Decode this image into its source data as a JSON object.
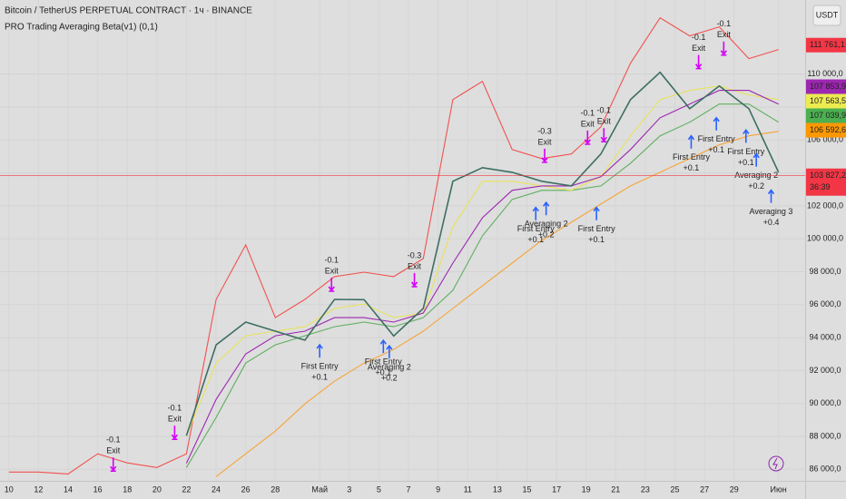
{
  "chart_data": {
    "type": "line",
    "title": "Bitcoin / TetherUS PERPETUAL CONTRACT · 1ч · BINANCE",
    "subtitle": "PRO Trading Averaging Beta(v1) (0,1)",
    "currency": "USDT",
    "countdown": "36:39",
    "x": [
      0,
      2,
      4,
      6,
      8,
      10,
      12,
      14,
      16,
      18,
      20,
      22,
      24,
      26,
      28,
      30,
      32,
      34,
      36,
      38,
      40,
      42,
      44,
      46,
      48,
      50,
      52
    ],
    "xlim": [
      -0.6,
      53.8
    ],
    "xticks": [
      {
        "value": 0,
        "label": "10"
      },
      {
        "value": 2,
        "label": "12"
      },
      {
        "value": 4,
        "label": "14"
      },
      {
        "value": 6,
        "label": "16"
      },
      {
        "value": 8,
        "label": "18"
      },
      {
        "value": 10,
        "label": "20"
      },
      {
        "value": 12,
        "label": "22"
      },
      {
        "value": 14,
        "label": "24"
      },
      {
        "value": 16,
        "label": "26"
      },
      {
        "value": 18,
        "label": "28"
      },
      {
        "value": 21,
        "label": "Май"
      },
      {
        "value": 23,
        "label": "3"
      },
      {
        "value": 25,
        "label": "5"
      },
      {
        "value": 27,
        "label": "7"
      },
      {
        "value": 29,
        "label": "9"
      },
      {
        "value": 31,
        "label": "11"
      },
      {
        "value": 33,
        "label": "13"
      },
      {
        "value": 35,
        "label": "15"
      },
      {
        "value": 37,
        "label": "17"
      },
      {
        "value": 39,
        "label": "19"
      },
      {
        "value": 41,
        "label": "21"
      },
      {
        "value": 43,
        "label": "23"
      },
      {
        "value": 45,
        "label": "25"
      },
      {
        "value": 47,
        "label": "27"
      },
      {
        "value": 49,
        "label": "29"
      },
      {
        "value": 52,
        "label": "Июн"
      }
    ],
    "ylim": [
      85300,
      114500
    ],
    "yticks": [
      {
        "value": 86000,
        "label": "86 000,0"
      },
      {
        "value": 88000,
        "label": "88 000,0"
      },
      {
        "value": 90000,
        "label": "90 000,0"
      },
      {
        "value": 92000,
        "label": "92 000,0"
      },
      {
        "value": 94000,
        "label": "94 000,0"
      },
      {
        "value": 96000,
        "label": "96 000,0"
      },
      {
        "value": 98000,
        "label": "98 000,0"
      },
      {
        "value": 100000,
        "label": "100 000,0"
      },
      {
        "value": 102000,
        "label": "102 000,0"
      },
      {
        "value": 104000,
        "label": "104 000,0"
      },
      {
        "value": 106000,
        "label": "106 000,0"
      },
      {
        "value": 108000,
        "label": "108 000,0"
      },
      {
        "value": 110000,
        "label": "110 000,0"
      }
    ],
    "grid": true,
    "series": [
      {
        "color": "#f0524f",
        "values": [
          85835,
          85835,
          85720,
          86940,
          86390,
          86110,
          86940,
          96320,
          99630,
          95210,
          96320,
          97700,
          97970,
          97700,
          98800,
          108450,
          109560,
          105420,
          104870,
          105150,
          106800,
          110660,
          113420,
          112320,
          112870,
          110940,
          111490
        ]
      },
      {
        "color": "#f7a43a",
        "values": [
          null,
          null,
          null,
          null,
          null,
          null,
          null,
          85560,
          86940,
          88320,
          89970,
          91350,
          92450,
          93280,
          94390,
          95770,
          97150,
          98520,
          99900,
          101000,
          102110,
          103210,
          104040,
          104870,
          105700,
          106250,
          106520
        ]
      },
      {
        "color": "#5fae5f",
        "values": [
          null,
          null,
          null,
          null,
          null,
          null,
          86110,
          89150,
          92450,
          93560,
          94110,
          94660,
          94940,
          94660,
          95210,
          96870,
          100180,
          102390,
          102940,
          102940,
          103210,
          104590,
          106250,
          107080,
          108180,
          108180,
          107080
        ]
      },
      {
        "color": "#e8e35a",
        "values": [
          null,
          null,
          null,
          null,
          null,
          null,
          88040,
          92450,
          94110,
          94390,
          94660,
          95770,
          96040,
          95210,
          95490,
          100730,
          103490,
          103490,
          103210,
          102940,
          103770,
          106250,
          108450,
          109010,
          109280,
          108730,
          108450
        ]
      },
      {
        "color": "#9c27b0",
        "values": [
          null,
          null,
          null,
          null,
          null,
          null,
          86370,
          90250,
          93010,
          94110,
          94390,
          95210,
          95210,
          94940,
          95490,
          98520,
          101280,
          102940,
          103210,
          103210,
          103770,
          105420,
          107350,
          108180,
          109010,
          109010,
          108180
        ]
      },
      {
        "color": "#3d6e63",
        "values": [
          null,
          null,
          null,
          null,
          null,
          null,
          88040,
          93560,
          94940,
          94390,
          93840,
          96320,
          96300,
          94100,
          95770,
          103490,
          104320,
          104040,
          103490,
          103210,
          105150,
          108450,
          110110,
          107900,
          109280,
          107900,
          104040
        ]
      }
    ],
    "signals": [
      {
        "kind": "exit",
        "x": 7.05,
        "price": 85950,
        "text": "-0.1",
        "label": "Exit"
      },
      {
        "kind": "exit",
        "x": 11.2,
        "price": 87880,
        "text": "-0.1",
        "label": "Exit"
      },
      {
        "kind": "exit",
        "x": 21.8,
        "price": 96870,
        "text": "-0.1",
        "label": "Exit"
      },
      {
        "kind": "exit",
        "x": 27.4,
        "price": 97150,
        "text": "-0.3",
        "label": "Exit"
      },
      {
        "kind": "exit",
        "x": 36.2,
        "price": 104700,
        "text": "-0.3",
        "label": "Exit"
      },
      {
        "kind": "exit",
        "x": 39.1,
        "price": 105800,
        "text": "-0.1",
        "label": "Exit"
      },
      {
        "kind": "exit",
        "x": 40.2,
        "price": 105950,
        "text": "-0.1",
        "label": "Exit"
      },
      {
        "kind": "exit",
        "x": 46.6,
        "price": 110390,
        "text": "-0.1",
        "label": "Exit"
      },
      {
        "kind": "exit",
        "x": 48.3,
        "price": 111210,
        "text": "-0.1",
        "label": "Exit"
      },
      {
        "kind": "entry",
        "x": 21.0,
        "price": 93560,
        "text": "First Entry",
        "label": "+0.1"
      },
      {
        "kind": "entry",
        "x": 25.3,
        "price": 93830,
        "text": "First Entry",
        "label": "+0.1"
      },
      {
        "kind": "entry",
        "x": 25.7,
        "price": 93500,
        "text": "Averaging 2",
        "label": "+0.2"
      },
      {
        "kind": "entry",
        "x": 35.6,
        "price": 101900,
        "text": "First Entry",
        "label": "+0.1"
      },
      {
        "kind": "entry",
        "x": 36.3,
        "price": 102200,
        "text": "Averaging 2",
        "label": "+0.2"
      },
      {
        "kind": "entry",
        "x": 39.7,
        "price": 101900,
        "text": "First Entry",
        "label": "+0.1"
      },
      {
        "kind": "entry",
        "x": 46.1,
        "price": 106250,
        "text": "First Entry",
        "label": "+0.1"
      },
      {
        "kind": "entry",
        "x": 47.8,
        "price": 107350,
        "text": "First Entry",
        "label": "+0.1"
      },
      {
        "kind": "entry",
        "x": 49.8,
        "price": 106600,
        "text": "First Entry",
        "label": "+0.1"
      },
      {
        "kind": "entry",
        "x": 50.5,
        "price": 105150,
        "text": "Averaging 2",
        "label": "+0.2"
      },
      {
        "kind": "entry",
        "x": 51.5,
        "price": 102950,
        "text": "Averaging 3",
        "label": "+0.4"
      }
    ],
    "price_tags": [
      {
        "value": 111761.1,
        "label": "111 761,1",
        "color": "#f23645"
      },
      {
        "value": 107853.9,
        "label": "107 853,9",
        "color": "#9c27b0"
      },
      {
        "value": 107563.5,
        "label": "107 563,5",
        "color": "#ecec50"
      },
      {
        "value": 107039.9,
        "label": "107 039,9",
        "color": "#4caf50"
      },
      {
        "value": 106592.6,
        "label": "106 592,6",
        "color": "#ff9800"
      },
      {
        "value": 103827.2,
        "label": "103 827,2",
        "color": "#f23645"
      }
    ]
  }
}
